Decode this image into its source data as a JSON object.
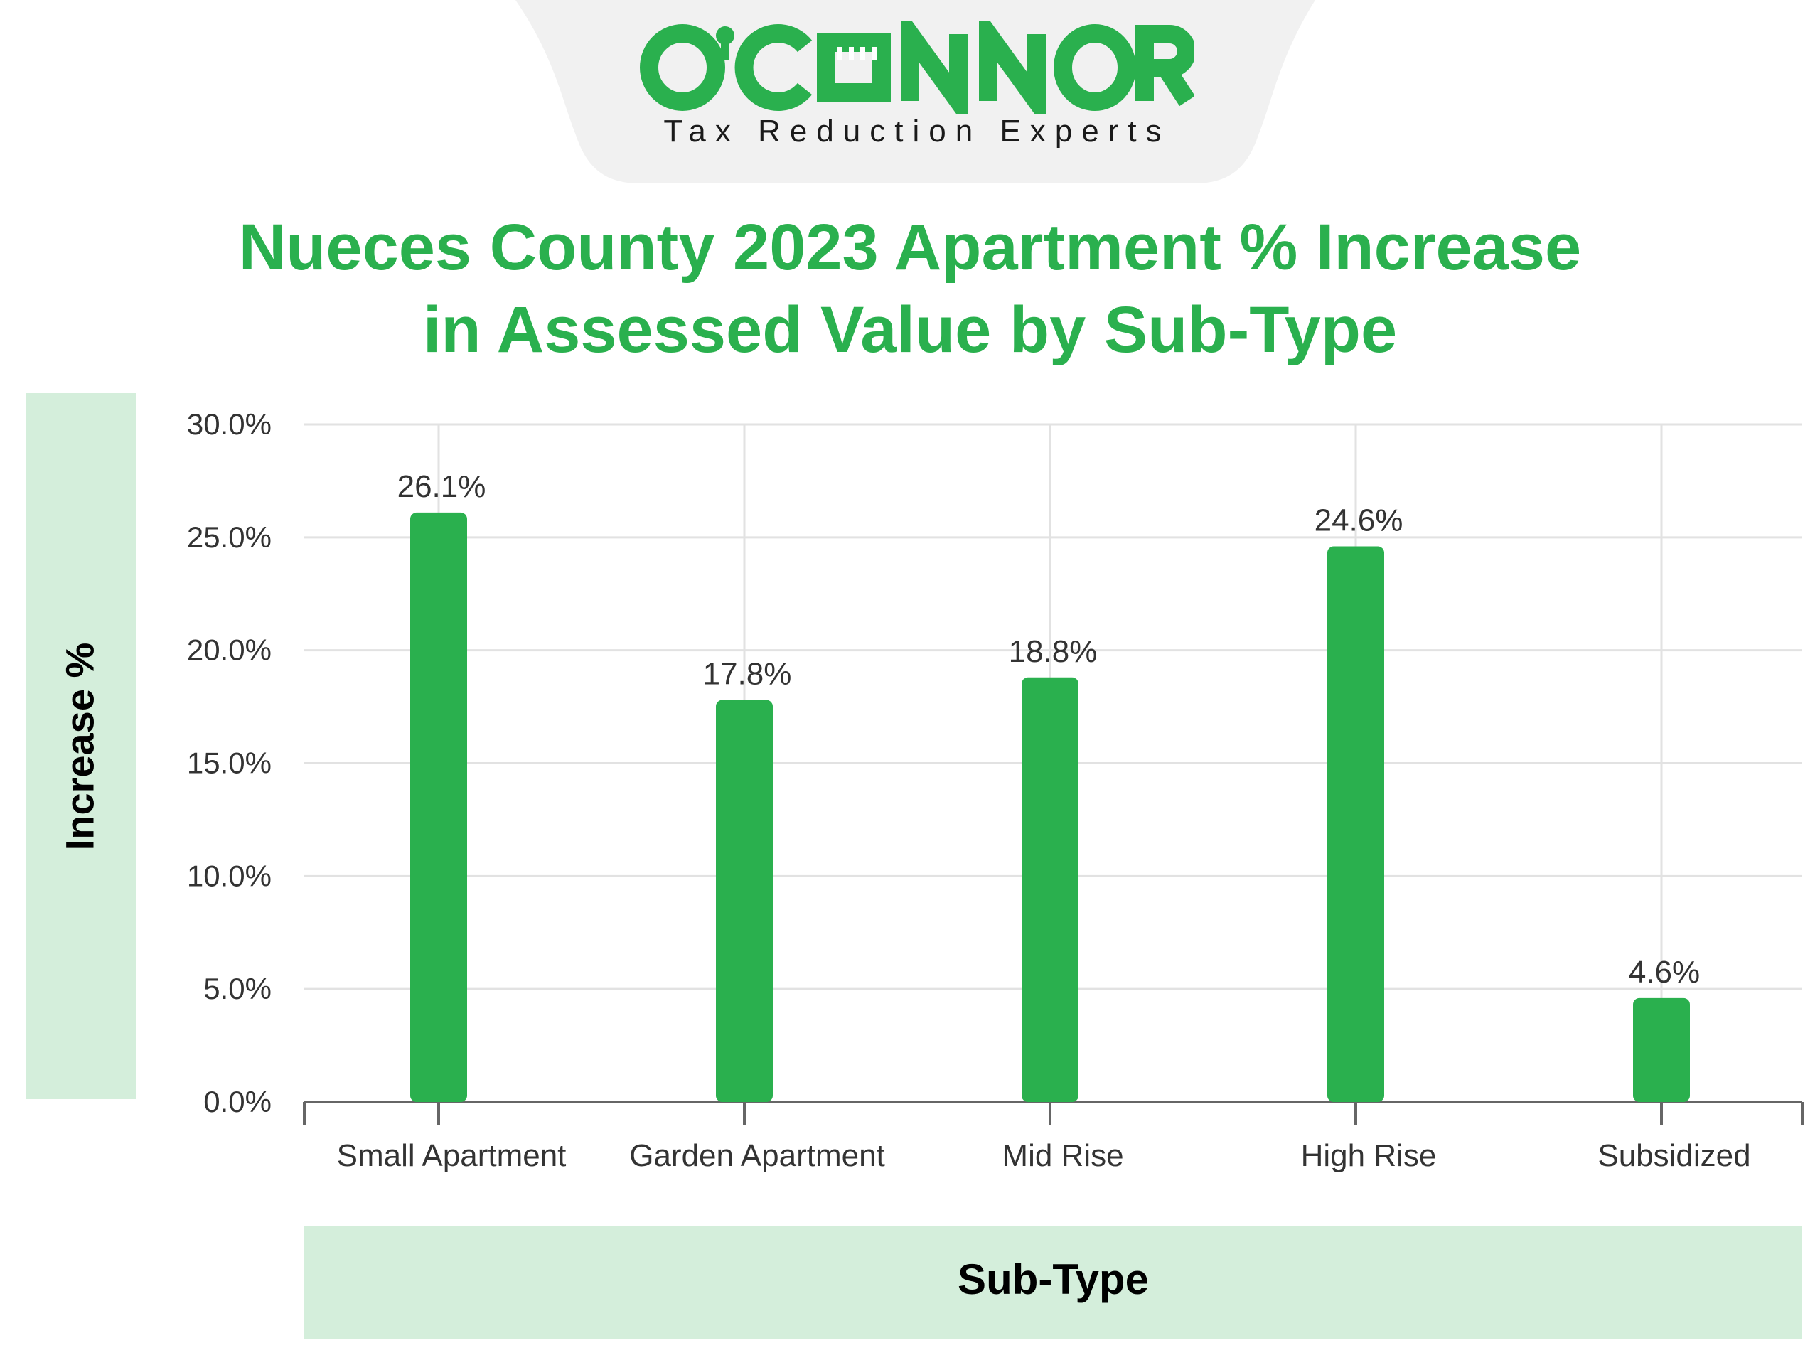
{
  "logo": {
    "name": "O'CONNOR",
    "tagline": "Tax Reduction Experts"
  },
  "colors": {
    "bar": "#2ab04e",
    "title": "#2ab04e",
    "label_band": "#d4eedb",
    "grid": "#e2e2e2",
    "logo_tab": "#f1f1f1"
  },
  "chart_data": {
    "type": "bar",
    "title": "Nueces County 2023 Apartment % Increase in Assessed Value by Sub-Type",
    "title_lines": [
      "Nueces County 2023 Apartment % Increase",
      "in Assessed Value by Sub-Type"
    ],
    "xlabel": "Sub-Type",
    "ylabel": "Increase %",
    "categories": [
      "Small Apartment",
      "Garden Apartment",
      "Mid Rise",
      "High Rise",
      "Subsidized"
    ],
    "values": [
      26.1,
      17.8,
      18.8,
      24.6,
      4.6
    ],
    "value_labels": [
      "26.1%",
      "17.8%",
      "18.8%",
      "24.6%",
      "4.6%"
    ],
    "ylim": [
      0,
      30
    ],
    "yticks": [
      "0.0%",
      "5.0%",
      "10.0%",
      "15.0%",
      "20.0%",
      "25.0%",
      "30.0%"
    ],
    "grid": true,
    "legend": "none"
  }
}
